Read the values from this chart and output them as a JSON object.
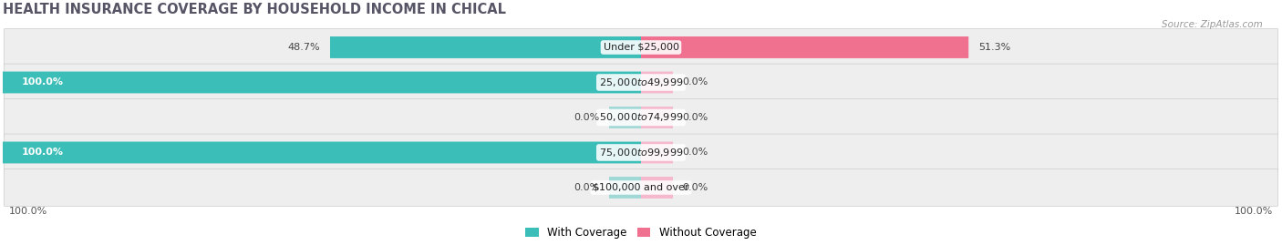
{
  "title": "HEALTH INSURANCE COVERAGE BY HOUSEHOLD INCOME IN CHICAL",
  "source": "Source: ZipAtlas.com",
  "categories": [
    "Under $25,000",
    "$25,000 to $49,999",
    "$50,000 to $74,999",
    "$75,000 to $99,999",
    "$100,000 and over"
  ],
  "with_coverage": [
    48.7,
    100.0,
    0.0,
    100.0,
    0.0
  ],
  "without_coverage": [
    51.3,
    0.0,
    0.0,
    0.0,
    0.0
  ],
  "stub_with": [
    0.0,
    0.0,
    5.0,
    0.0,
    5.0
  ],
  "stub_without": [
    0.0,
    5.0,
    5.0,
    5.0,
    5.0
  ],
  "color_with": "#3bbdb8",
  "color_without": "#f07090",
  "color_with_light": "#a0d8d6",
  "color_without_light": "#f5b8cc",
  "row_bg_odd": "#efefef",
  "row_bg_even": "#e5e5e5",
  "bg_figure": "#ffffff",
  "bar_height": 0.62,
  "title_fontsize": 10.5,
  "label_fontsize": 8.0,
  "cat_fontsize": 8.0,
  "tick_fontsize": 8.0,
  "legend_fontsize": 8.5
}
